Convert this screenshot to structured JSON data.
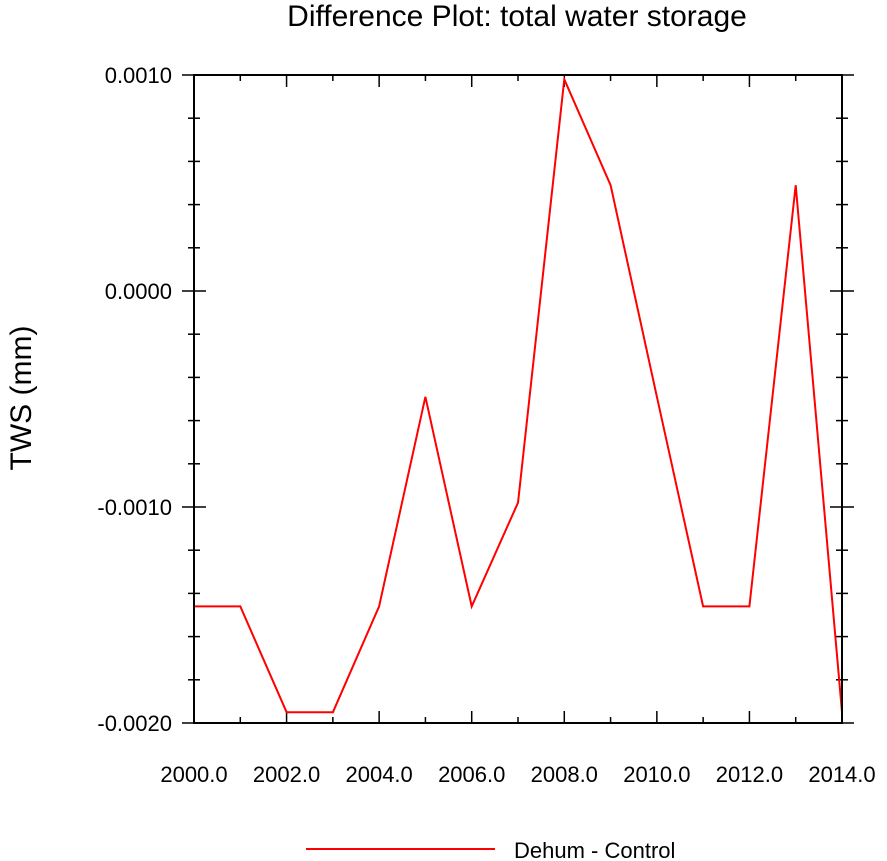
{
  "chart_data": {
    "type": "line",
    "title": "Difference Plot: total water storage",
    "xlabel": "",
    "ylabel": "TWS  (mm)",
    "xlim": [
      2000,
      2014
    ],
    "ylim": [
      -0.002,
      0.001
    ],
    "x_ticks": [
      2000,
      2002,
      2004,
      2006,
      2008,
      2010,
      2012,
      2014
    ],
    "x_tick_labels": [
      "2000.0",
      "2002.0",
      "2004.0",
      "2006.0",
      "2008.0",
      "2010.0",
      "2012.0",
      "2014.0"
    ],
    "y_ticks": [
      0.001,
      0.0,
      -0.001,
      -0.002
    ],
    "y_tick_labels": [
      "0.0010",
      "0.0000",
      "-0.0010",
      "-0.0020"
    ],
    "grid": false,
    "legend_position": "bottom-center",
    "series": [
      {
        "name": "Dehum - Control",
        "color": "#ff0000",
        "x": [
          2000,
          2001,
          2002,
          2003,
          2004,
          2005,
          2006,
          2007,
          2008,
          2009,
          2010,
          2011,
          2012,
          2013,
          2014
        ],
        "values": [
          -0.00146,
          -0.00146,
          -0.00195,
          -0.00195,
          -0.00146,
          -0.00049,
          -0.00146,
          -0.00098,
          0.00098,
          0.00049,
          -0.00049,
          -0.00146,
          -0.00146,
          0.00049,
          -0.00195
        ]
      }
    ]
  }
}
